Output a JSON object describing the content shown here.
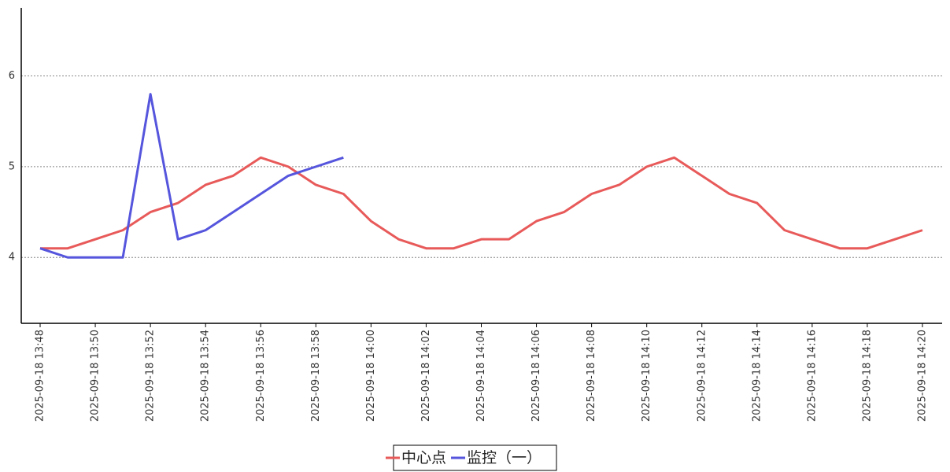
{
  "chart_data": {
    "type": "line",
    "categories": [
      "2025-09-18 13:48",
      null,
      "2025-09-18 13:50",
      null,
      "2025-09-18 13:52",
      null,
      "2025-09-18 13:54",
      null,
      "2025-09-18 13:56",
      null,
      "2025-09-18 13:58",
      null,
      "2025-09-18 14:00",
      null,
      "2025-09-18 14:02",
      null,
      "2025-09-18 14:04",
      null,
      "2025-09-18 14:06",
      null,
      "2025-09-18 14:08",
      null,
      "2025-09-18 14:10",
      null,
      "2025-09-18 14:12",
      null,
      "2025-09-18 14:14",
      null,
      "2025-09-18 14:16",
      null,
      "2025-09-18 14:18",
      null,
      "2025-09-18 14:20"
    ],
    "series": [
      {
        "name": "中心点",
        "color": "#e85a5a",
        "values": [
          4.1,
          4.1,
          4.2,
          4.3,
          4.5,
          4.6,
          4.8,
          4.9,
          5.1,
          5.0,
          4.8,
          4.7,
          4.4,
          4.2,
          4.1,
          4.1,
          4.2,
          4.2,
          4.4,
          4.5,
          4.7,
          4.8,
          5.0,
          5.1,
          4.9,
          4.7,
          4.6,
          4.3,
          4.2,
          4.1,
          4.1,
          4.2,
          4.3
        ]
      },
      {
        "name": "监控（一）",
        "color": "#5555dd",
        "values": [
          4.1,
          4.0,
          4.0,
          4.0,
          5.8,
          4.2,
          4.3,
          4.5,
          4.7,
          4.9,
          5.0,
          5.1,
          null,
          null,
          null,
          null,
          null,
          null,
          null,
          null,
          null,
          null,
          null,
          null,
          null,
          null,
          null,
          null,
          null,
          null,
          null,
          null,
          null
        ]
      }
    ],
    "ylim": [
      3.3,
      6.75
    ],
    "yticks": [
      4,
      5,
      6
    ],
    "grid": true,
    "legend": "bottom"
  }
}
